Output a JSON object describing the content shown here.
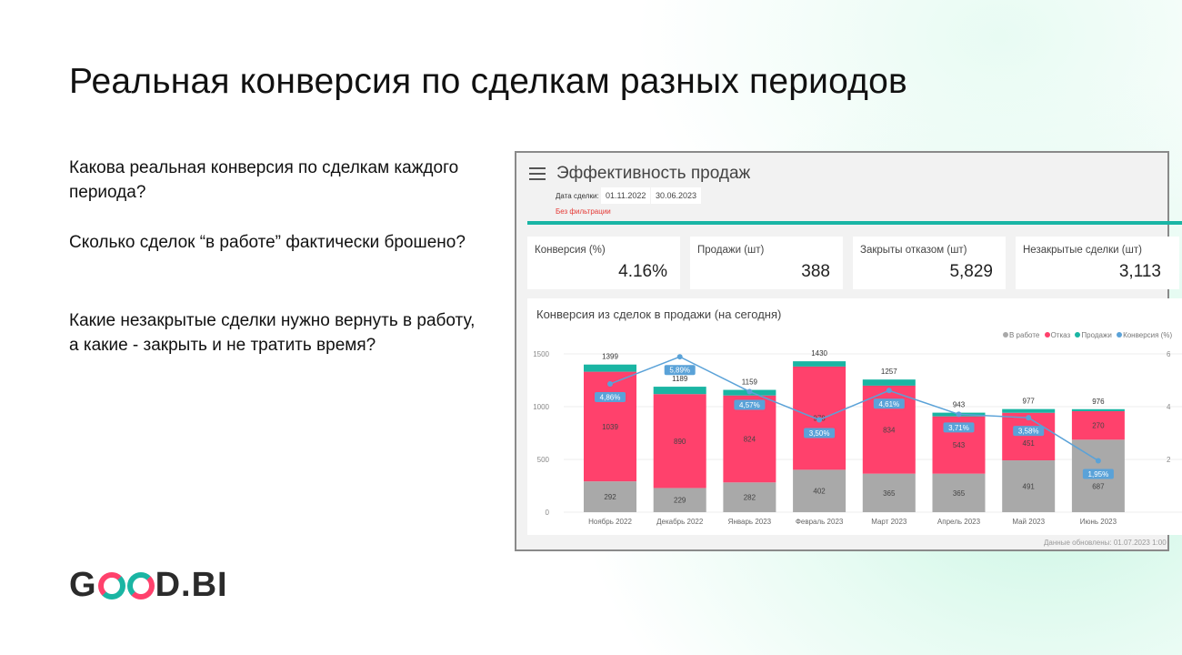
{
  "slide": {
    "title": "Реальная конверсия по сделкам разных периодов",
    "questions": [
      "Какова реальная конверсия по сделкам каждого периода?",
      "Сколько сделок “в работе” фактически брошено?",
      "Какие незакрытые сделки нужно вернуть в работу, а какие - закрыть и не тратить время?"
    ],
    "logo": "GOOD.BI"
  },
  "dashboard": {
    "title": "Эффективность продаж",
    "date_label": "Дата сделки:",
    "date_from": "01.11.2022",
    "date_to": "30.06.2023",
    "filter_note": "Без фильтрации",
    "kpis": [
      {
        "label": "Конверсия (%)",
        "value": "4.16%"
      },
      {
        "label": "Продажи (шт)",
        "value": "388"
      },
      {
        "label": "Закрыты отказом (шт)",
        "value": "5,829"
      },
      {
        "label": "Незакрытые сделки (шт)",
        "value": "3,113"
      }
    ],
    "footer": "Данные обновлены: 01.07.2023 1:00"
  },
  "colors": {
    "work": "#a9a9a9",
    "refusal": "#ff416c",
    "sales": "#1ab5a3",
    "conversion": "#5aa2d8"
  },
  "chart_data": {
    "type": "bar",
    "stacked": true,
    "title": "Конверсия из сделок в продажи (на сегодня)",
    "categories": [
      "Ноябрь 2022",
      "Декабрь 2022",
      "Январь 2023",
      "Февраль 2023",
      "Март 2023",
      "Апрель 2023",
      "Май 2023",
      "Июнь 2023"
    ],
    "series": [
      {
        "name": "В работе",
        "values": [
          292,
          229,
          282,
          402,
          365,
          365,
          491,
          687
        ]
      },
      {
        "name": "Отказ",
        "values": [
          1039,
          890,
          824,
          978,
          834,
          543,
          451,
          270
        ]
      },
      {
        "name": "Продажи",
        "values": [
          68,
          70,
          53,
          50,
          58,
          35,
          35,
          19
        ]
      },
      {
        "name": "Конверсия (%)",
        "type": "line",
        "axis": "right",
        "values": [
          4.86,
          5.89,
          4.57,
          3.5,
          4.61,
          3.71,
          3.58,
          1.95
        ],
        "labels": [
          "4,86%",
          "5,89%",
          "4,57%",
          "3,50%",
          "4,61%",
          "3,71%",
          "3,58%",
          "1,95%"
        ]
      }
    ],
    "totals": [
      1399,
      1189,
      1159,
      1430,
      1257,
      943,
      977,
      976
    ],
    "ylim": [
      0,
      1500
    ],
    "yticks": [
      0,
      500,
      1000,
      1500
    ],
    "y2lim": [
      0,
      6
    ],
    "y2ticks": [
      2,
      4,
      6
    ],
    "legend": "top-right"
  }
}
